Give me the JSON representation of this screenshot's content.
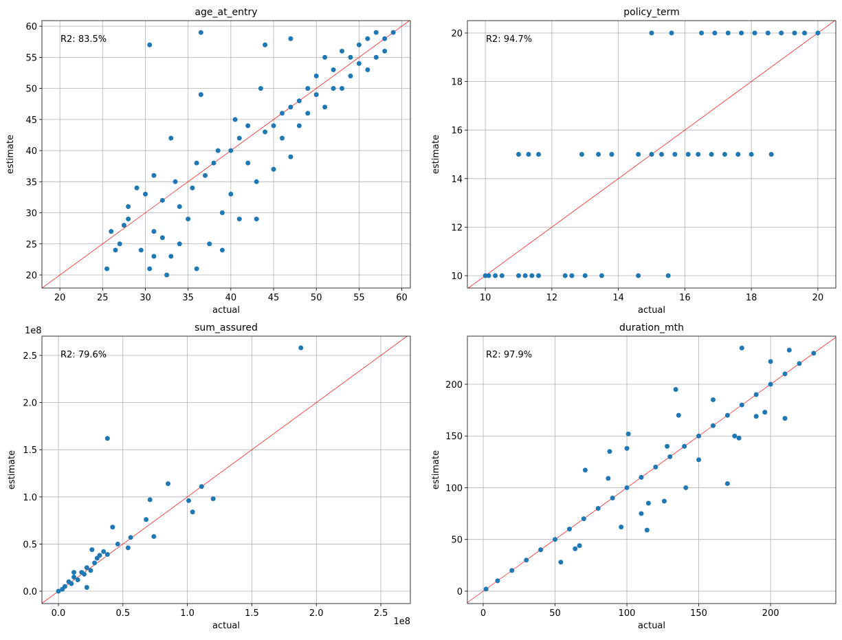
{
  "chart_data": [
    {
      "type": "scatter",
      "title": "age_at_entry",
      "xlabel": "actual",
      "ylabel": "estimate",
      "annotation": "R2: 83.5%",
      "color": "#1f77b4",
      "reference_line_color": "#ff0000",
      "grid": true,
      "xlim": [
        17.9,
        61.0
      ],
      "ylim": [
        17.9,
        60.9
      ],
      "xticks": [
        20,
        25,
        30,
        35,
        40,
        45,
        50,
        55,
        60
      ],
      "yticks": [
        20,
        25,
        30,
        35,
        40,
        45,
        50,
        55,
        60
      ],
      "x": [
        25.5,
        26,
        26.5,
        27,
        27.5,
        28,
        28,
        29,
        29.5,
        30,
        30.5,
        30.5,
        31,
        31,
        32,
        32,
        32.5,
        33,
        33,
        33.5,
        34,
        34,
        35,
        35.5,
        36,
        36,
        36.5,
        37,
        37.5,
        38,
        38.5,
        39,
        39,
        40,
        40,
        41,
        41,
        42,
        42,
        43,
        43,
        44,
        44,
        45,
        45,
        46,
        46,
        47,
        47,
        48,
        48,
        49,
        49,
        50,
        50,
        51,
        51,
        52,
        52,
        53,
        53,
        54,
        54,
        55,
        55,
        56,
        56,
        57,
        57,
        58,
        58,
        59,
        36.5,
        43.5,
        40.5,
        31,
        47
      ],
      "y": [
        21,
        27,
        24,
        25,
        28,
        31,
        29,
        34,
        24,
        33,
        21,
        57,
        27,
        23,
        32,
        26,
        20,
        42,
        23,
        35,
        31,
        25,
        29,
        34,
        38,
        21,
        59,
        36,
        25,
        38,
        40,
        30,
        24,
        40,
        33,
        42,
        29,
        38,
        44,
        35,
        29,
        43,
        57,
        37,
        44,
        46,
        42,
        47,
        39,
        48,
        44,
        50,
        46,
        49,
        52,
        47,
        55,
        53,
        50,
        50,
        56,
        52,
        55,
        57,
        54,
        58,
        53,
        59,
        55,
        58,
        56,
        59,
        49,
        50,
        45,
        36,
        58
      ]
    },
    {
      "type": "scatter",
      "title": "policy_term",
      "xlabel": "actual",
      "ylabel": "estimate",
      "annotation": "R2: 94.7%",
      "color": "#1f77b4",
      "reference_line_color": "#ff0000",
      "grid": true,
      "xlim": [
        9.46,
        20.54
      ],
      "ylim": [
        9.49,
        20.51
      ],
      "xticks": [
        10,
        12,
        14,
        16,
        18,
        20
      ],
      "yticks": [
        10,
        12,
        14,
        16,
        18,
        20
      ],
      "x": [
        10,
        10.1,
        10.3,
        10.5,
        11,
        11.2,
        11.4,
        11.6,
        12.4,
        12.6,
        13,
        13.5,
        14.6,
        15.5,
        11,
        11.3,
        11.6,
        12.9,
        13.4,
        13.8,
        14.6,
        15,
        15.3,
        15.7,
        16.1,
        16.4,
        16.8,
        17.2,
        17.6,
        18,
        18.6,
        15,
        15.6,
        16.5,
        16.9,
        17.3,
        17.7,
        18.1,
        18.5,
        18.9,
        19.3,
        19.6,
        20
      ],
      "y": [
        10,
        10,
        10,
        10,
        10,
        10,
        10,
        10,
        10,
        10,
        10,
        10,
        10,
        10,
        15,
        15,
        15,
        15,
        15,
        15,
        15,
        15,
        15,
        15,
        15,
        15,
        15,
        15,
        15,
        15,
        15,
        20,
        20,
        20,
        20,
        20,
        20,
        20,
        20,
        20,
        20,
        20,
        20
      ]
    },
    {
      "type": "scatter",
      "title": "sum_assured",
      "xlabel": "actual",
      "ylabel": "estimate",
      "annotation": "R2: 79.6%",
      "color": "#1f77b4",
      "reference_line_color": "#ff0000",
      "grid": true,
      "x_offset_label": "1e8",
      "y_offset_label": "1e8",
      "xlim": [
        -0.128,
        2.729
      ],
      "ylim": [
        -0.131,
        2.704
      ],
      "xticks": [
        {
          "value": 0,
          "label": "0.0"
        },
        0.5,
        {
          "value": 1,
          "label": "1.0"
        },
        1.5,
        {
          "value": 2,
          "label": "2.0"
        },
        2.5
      ],
      "yticks": [
        {
          "value": 0,
          "label": "0.0"
        },
        0.5,
        {
          "value": 1,
          "label": "1.0"
        },
        1.5,
        {
          "value": 2,
          "label": "2.0"
        },
        2.5
      ],
      "x": [
        0,
        0.03,
        0.05,
        0.08,
        0.1,
        0.12,
        0.15,
        0.18,
        0.2,
        0.22,
        0.25,
        0.28,
        0.3,
        0.32,
        0.35,
        0.38,
        0.42,
        0.46,
        0.54,
        0.56,
        0.68,
        0.71,
        0.74,
        0.85,
        1.01,
        1.04,
        1.11,
        1.2,
        1.88,
        0.38,
        0.12,
        0.22,
        0.26
      ],
      "y": [
        0,
        0.02,
        0.05,
        0.1,
        0.08,
        0.15,
        0.12,
        0.2,
        0.18,
        0.25,
        0.22,
        0.3,
        0.35,
        0.38,
        0.42,
        1.62,
        0.68,
        0.5,
        0.46,
        0.57,
        0.76,
        0.97,
        0.58,
        1.14,
        0.96,
        0.84,
        1.11,
        0.98,
        2.58,
        0.39,
        0.2,
        0.04,
        0.44
      ]
    },
    {
      "type": "scatter",
      "title": "duration_mth",
      "xlabel": "actual",
      "ylabel": "estimate",
      "annotation": "R2: 97.9%",
      "color": "#1f77b4",
      "reference_line_color": "#ff0000",
      "grid": true,
      "xlim": [
        -11,
        245.4
      ],
      "ylim": [
        -12,
        246.5
      ],
      "xticks": [
        0,
        50,
        100,
        150,
        200
      ],
      "yticks": [
        0,
        50,
        100,
        150,
        200
      ],
      "x": [
        2,
        10,
        20,
        30,
        40,
        50,
        60,
        70,
        80,
        90,
        100,
        110,
        120,
        130,
        140,
        150,
        160,
        170,
        180,
        190,
        200,
        210,
        220,
        230,
        54,
        64,
        67,
        71,
        87,
        88,
        96,
        100,
        101,
        110,
        114,
        115,
        126,
        128,
        134,
        136,
        141,
        150,
        160,
        170,
        175,
        178,
        180,
        190,
        196,
        210,
        213,
        200
      ],
      "y": [
        2,
        10,
        20,
        30,
        40,
        50,
        60,
        70,
        80,
        90,
        100,
        110,
        120,
        130,
        140,
        150,
        160,
        170,
        180,
        190,
        200,
        210,
        220,
        230,
        28,
        41,
        44,
        117,
        109,
        135,
        62,
        138,
        152,
        75,
        59,
        85,
        87,
        140,
        195,
        170,
        100,
        127,
        185,
        104,
        150,
        148,
        235,
        169,
        173,
        167,
        233,
        222
      ]
    }
  ]
}
